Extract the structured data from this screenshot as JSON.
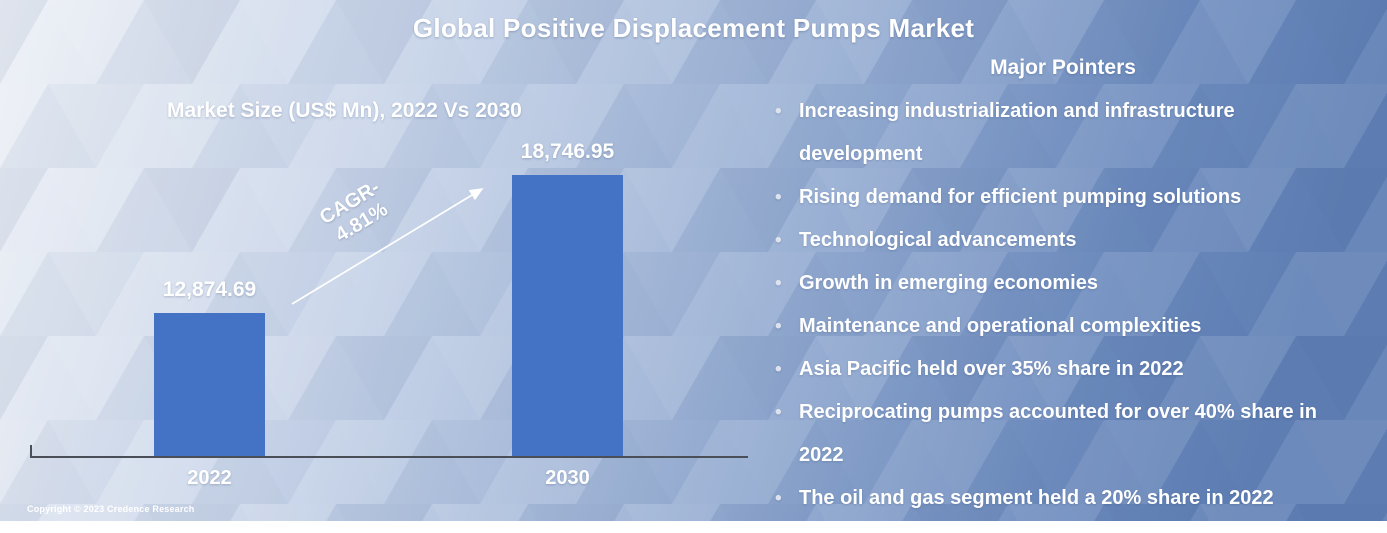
{
  "title": "Global Positive Displacement Pumps Market",
  "chart_data": {
    "type": "bar",
    "title": "Market Size (US$ Mn), 2022 Vs 2030",
    "categories": [
      "2022",
      "2030"
    ],
    "values": [
      12874.69,
      18746.95
    ],
    "value_labels": [
      "12,874.69",
      "18,746.95"
    ],
    "annotation": {
      "line1": "CAGR-",
      "line2": "4.81%"
    },
    "xlabel": "",
    "ylabel": "",
    "ylim": [
      6800,
      20000
    ],
    "grid": false,
    "legend": "none",
    "bar_color": "#4472c4"
  },
  "pointers": {
    "heading": "Major Pointers",
    "items": [
      "Increasing industrialization and infrastructure development",
      "Rising demand for efficient pumping solutions",
      "Technological advancements",
      "Growth in emerging economies",
      "Maintenance and operational complexities",
      "Asia Pacific held over 35% share in 2022",
      "Reciprocating pumps accounted for over 40% share in 2022",
      "The oil and gas segment held a 20% share in 2022"
    ]
  },
  "footer": {
    "copyright": "Copyright © 2023 Credence Research"
  },
  "colors": {
    "bar": "#4472c4",
    "text": "#ffffff",
    "bg_left": "#e9edf4",
    "bg_right": "#6080b5",
    "axis": "#4a4f57"
  }
}
